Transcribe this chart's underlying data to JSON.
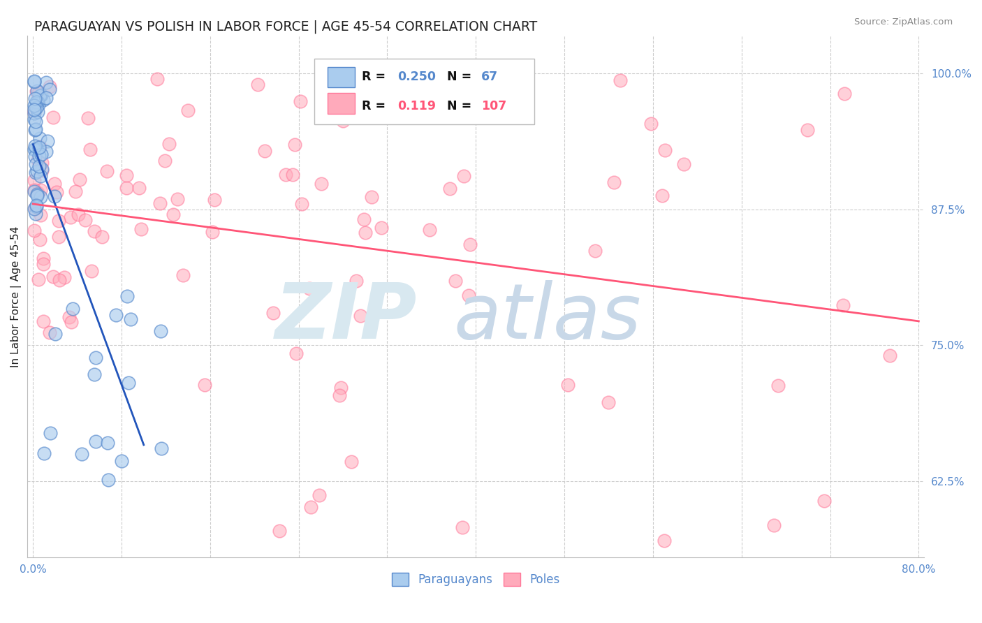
{
  "title": "PARAGUAYAN VS POLISH IN LABOR FORCE | AGE 45-54 CORRELATION CHART",
  "source_text": "Source: ZipAtlas.com",
  "ylabel": "In Labor Force | Age 45-54",
  "xlim": [
    -0.005,
    0.805
  ],
  "ylim": [
    0.555,
    1.035
  ],
  "ytick_positions": [
    0.625,
    0.75,
    0.875,
    1.0
  ],
  "ytick_labels": [
    "62.5%",
    "75.0%",
    "87.5%",
    "100.0%"
  ],
  "xtick_positions": [
    0.0,
    0.8
  ],
  "xtick_labels": [
    "0.0%",
    "80.0%"
  ],
  "blue_R": 0.25,
  "blue_N": 67,
  "pink_R": 0.119,
  "pink_N": 107,
  "blue_fill": "#AACCEE",
  "blue_edge": "#5588CC",
  "pink_fill": "#FFAABB",
  "pink_edge": "#FF7799",
  "blue_line_color": "#2255BB",
  "pink_line_color": "#FF5577",
  "grid_color": "#CCCCCC",
  "background_color": "#FFFFFF",
  "vgrid_count": 10
}
